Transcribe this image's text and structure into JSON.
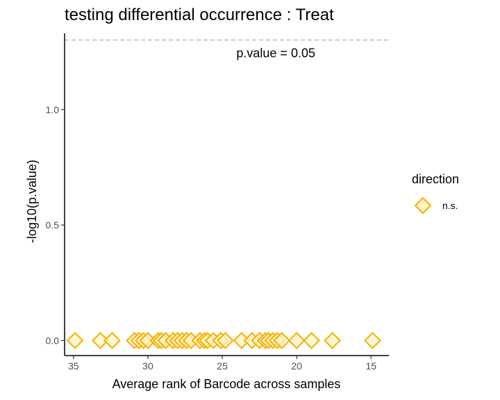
{
  "chart_data": {
    "type": "scatter",
    "title": "testing differential occurrence : Treat",
    "xlabel": "Average rank of Barcode across samples",
    "ylabel": "-log10(p.value)",
    "x_reversed": true,
    "xlim": [
      35.6,
      13.8
    ],
    "ylim": [
      -0.065,
      1.33
    ],
    "x_ticks": [
      35,
      30,
      25,
      20,
      15
    ],
    "y_ticks": [
      0.0,
      0.5,
      1.0
    ],
    "y_tick_labels": [
      "0.0",
      "0.5",
      "1.0"
    ],
    "threshold": {
      "value": 1.30103,
      "label": "p.value = 0.05",
      "label_x": 21.4,
      "label_y": 1.245
    },
    "series": [
      {
        "name": "n.s.",
        "marker": "diamond",
        "color": "#F5B000",
        "fill": "#FFF3C4",
        "x": [
          34.9,
          33.2,
          32.4,
          30.9,
          30.6,
          30.3,
          30.0,
          29.3,
          29.1,
          28.8,
          28.3,
          28.0,
          27.7,
          27.4,
          27.1,
          26.5,
          26.2,
          26.0,
          25.6,
          25.1,
          24.8,
          23.7,
          23.0,
          22.5,
          22.1,
          21.9,
          21.6,
          21.3,
          21.0,
          20.0,
          19.0,
          17.6,
          14.9
        ],
        "y": [
          0,
          0,
          0,
          0,
          0,
          0,
          0,
          0,
          0,
          0,
          0,
          0,
          0,
          0,
          0,
          0,
          0,
          0,
          0,
          0,
          0,
          0,
          0,
          0,
          0,
          0,
          0,
          0,
          0,
          0,
          0,
          0,
          0
        ]
      }
    ],
    "legend": {
      "title": "direction",
      "position": "right",
      "entries": [
        "n.s."
      ]
    }
  }
}
